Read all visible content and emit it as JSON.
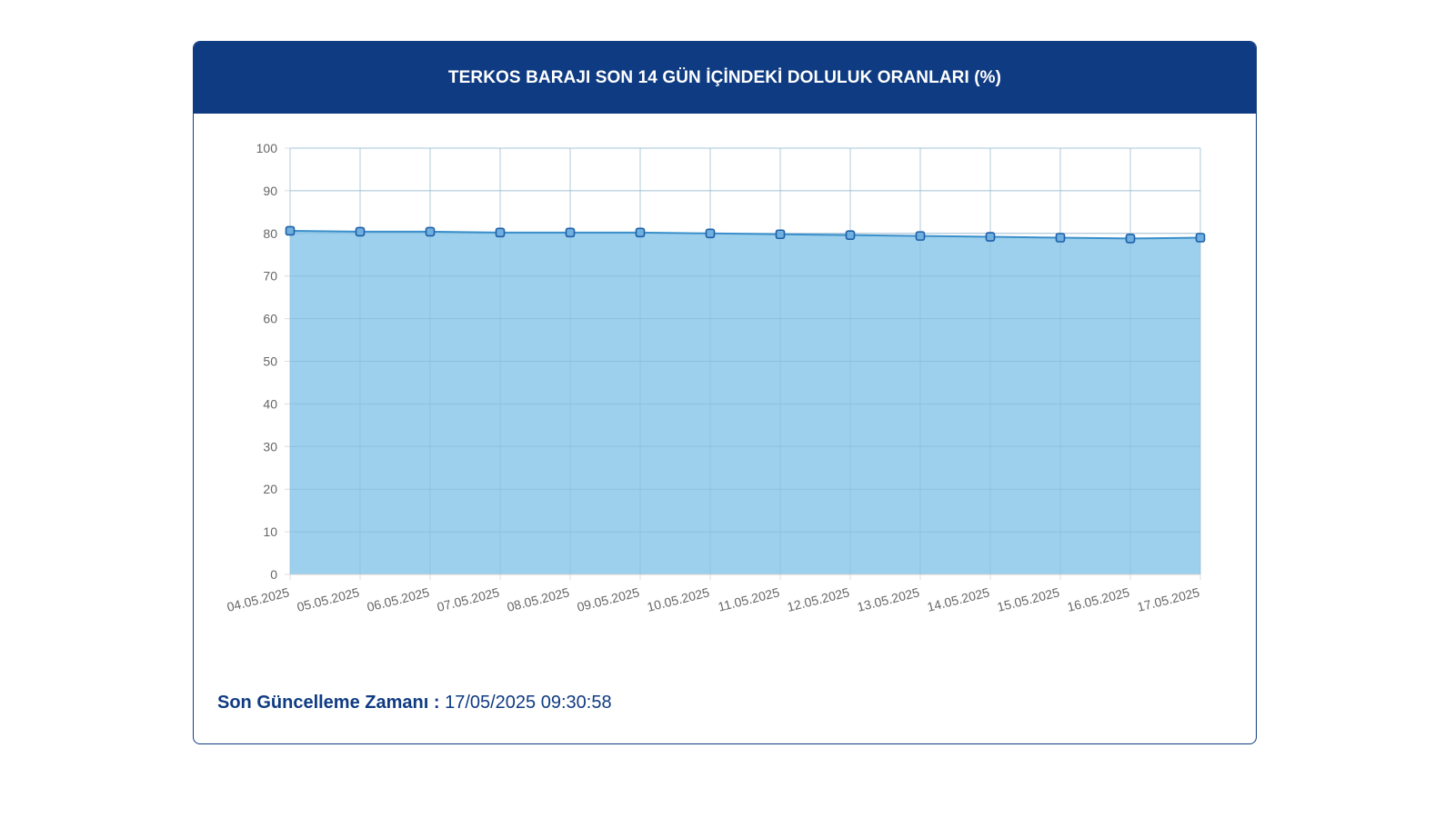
{
  "header": {
    "title": "TERKOS BARAJI SON 14 GÜN İÇİNDEKİ DOLULUK ORANLARI (%)"
  },
  "footer": {
    "label": "Son Güncelleme Zamanı :",
    "value": "17/05/2025 09:30:58"
  },
  "colors": {
    "header_bg": "#0f3b82",
    "area_fill": "#9dd0ec",
    "line": "#3a8fcb",
    "marker_stroke": "#1f5fa8",
    "grid": "#dcdcdc"
  },
  "chart_data": {
    "type": "area",
    "categories": [
      "04.05.2025",
      "05.05.2025",
      "06.05.2025",
      "07.05.2025",
      "08.05.2025",
      "09.05.2025",
      "10.05.2025",
      "11.05.2025",
      "12.05.2025",
      "13.05.2025",
      "14.05.2025",
      "15.05.2025",
      "16.05.2025",
      "17.05.2025"
    ],
    "values": [
      80.6,
      80.4,
      80.4,
      80.2,
      80.2,
      80.2,
      80.0,
      79.8,
      79.6,
      79.4,
      79.2,
      79.0,
      78.8,
      79.0
    ],
    "ylim": [
      0,
      100
    ],
    "yticks": [
      0,
      10,
      20,
      30,
      40,
      50,
      60,
      70,
      80,
      90,
      100
    ],
    "grid": true,
    "legend": "none"
  }
}
